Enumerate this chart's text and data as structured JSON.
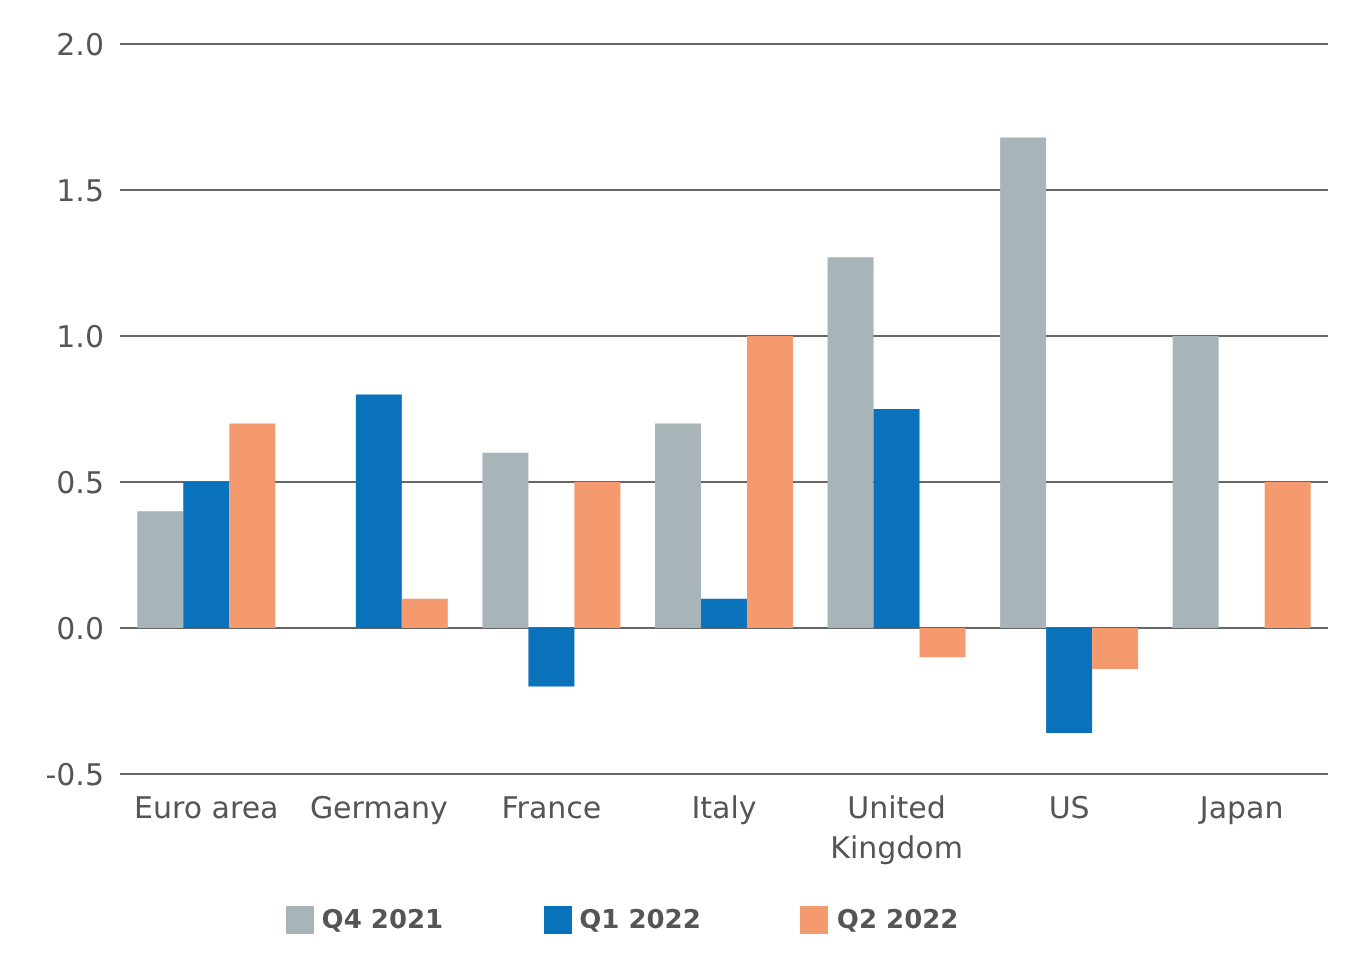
{
  "chart_data": {
    "type": "bar",
    "categories": [
      "Euro area",
      "Germany",
      "France",
      "Italy",
      "United Kingdom",
      "US",
      "Japan"
    ],
    "series": [
      {
        "name": "Q4 2021",
        "color": "#a7b5b9",
        "values": [
          0.4,
          null,
          0.6,
          0.7,
          1.27,
          1.68,
          1.0
        ]
      },
      {
        "name": "Q1 2022",
        "color": "#0a72ba",
        "values": [
          0.5,
          0.8,
          -0.2,
          0.1,
          0.75,
          -0.36,
          null
        ]
      },
      {
        "name": "Q2 2022",
        "color": "#f5996e",
        "values": [
          0.7,
          0.1,
          0.5,
          1.0,
          -0.1,
          -0.14,
          0.5
        ]
      }
    ],
    "ylim": [
      -0.5,
      2.0
    ],
    "yticks": [
      {
        "value": -0.5,
        "label": "-0.5"
      },
      {
        "value": 0,
        "label": "0.0"
      },
      {
        "value": 0.5,
        "label": "0.5"
      },
      {
        "value": 1,
        "label": "1.0"
      },
      {
        "value": 1.5,
        "label": "1.5"
      },
      {
        "value": 2,
        "label": "2.0"
      }
    ],
    "grid": "y",
    "legend": "bottom"
  }
}
